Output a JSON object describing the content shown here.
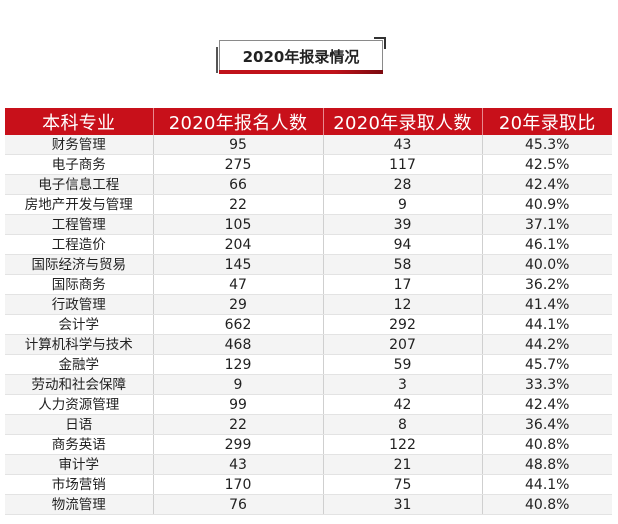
{
  "section_title": "2020年报录情况",
  "table": {
    "headers": [
      "本科专业",
      "2020年报名人数",
      "2020年录取人数",
      "20年录取比"
    ],
    "rows": [
      [
        "财务管理",
        "95",
        "43",
        "45.3%"
      ],
      [
        "电子商务",
        "275",
        "117",
        "42.5%"
      ],
      [
        "电子信息工程",
        "66",
        "28",
        "42.4%"
      ],
      [
        "房地产开发与管理",
        "22",
        "9",
        "40.9%"
      ],
      [
        "工程管理",
        "105",
        "39",
        "37.1%"
      ],
      [
        "工程造价",
        "204",
        "94",
        "46.1%"
      ],
      [
        "国际经济与贸易",
        "145",
        "58",
        "40.0%"
      ],
      [
        "国际商务",
        "47",
        "17",
        "36.2%"
      ],
      [
        "行政管理",
        "29",
        "12",
        "41.4%"
      ],
      [
        "会计学",
        "662",
        "292",
        "44.1%"
      ],
      [
        "计算机科学与技术",
        "468",
        "207",
        "44.2%"
      ],
      [
        "金融学",
        "129",
        "59",
        "45.7%"
      ],
      [
        "劳动和社会保障",
        "9",
        "3",
        "33.3%"
      ],
      [
        "人力资源管理",
        "99",
        "42",
        "42.4%"
      ],
      [
        "日语",
        "22",
        "8",
        "36.4%"
      ],
      [
        "商务英语",
        "299",
        "122",
        "40.8%"
      ],
      [
        "审计学",
        "43",
        "21",
        "48.8%"
      ],
      [
        "市场营销",
        "170",
        "75",
        "44.1%"
      ],
      [
        "物流管理",
        "76",
        "31",
        "40.8%"
      ]
    ]
  },
  "colors": {
    "header_bg": "#c8101a",
    "accent_red": "#c0121a"
  }
}
